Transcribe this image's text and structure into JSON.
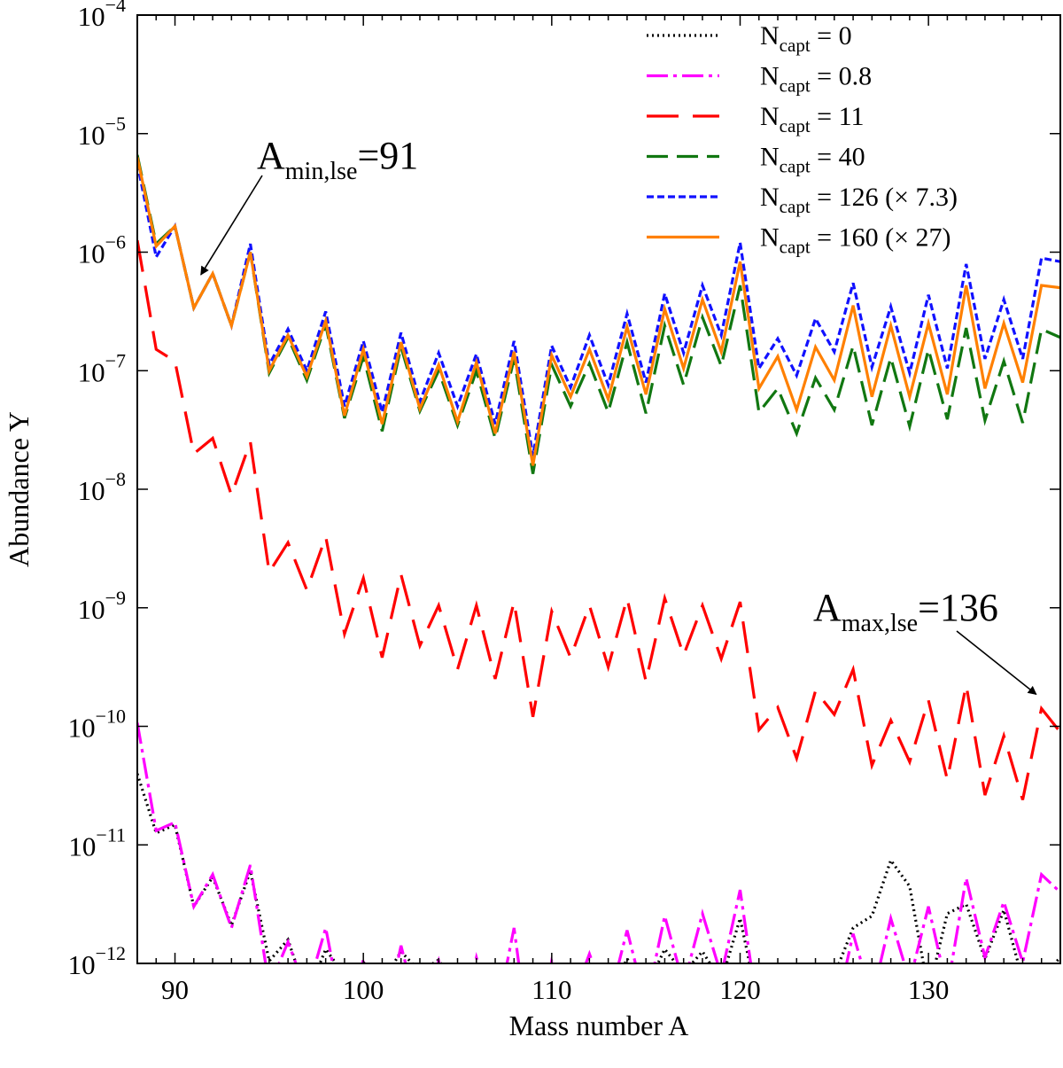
{
  "chart_data": {
    "type": "line",
    "xlabel": "Mass number A",
    "ylabel": "Abundance Y",
    "xlim": [
      88,
      137
    ],
    "ylim_log10": [
      -12,
      -4
    ],
    "yscale": "log",
    "x_ticks": [
      90,
      100,
      110,
      120,
      130
    ],
    "y_ticks": [
      {
        "base": "10",
        "exp": "−12",
        "log": -12
      },
      {
        "base": "10",
        "exp": "−11",
        "log": -11
      },
      {
        "base": "10",
        "exp": "−10",
        "log": -10
      },
      {
        "base": "10",
        "exp": "−9",
        "log": -9
      },
      {
        "base": "10",
        "exp": "−8",
        "log": -8
      },
      {
        "base": "10",
        "exp": "−7",
        "log": -7
      },
      {
        "base": "10",
        "exp": "−6",
        "log": -6
      },
      {
        "base": "10",
        "exp": "−5",
        "log": -5
      },
      {
        "base": "10",
        "exp": "−4",
        "log": -4
      }
    ],
    "x": [
      88,
      89,
      90,
      91,
      92,
      93,
      94,
      95,
      96,
      97,
      98,
      99,
      100,
      101,
      102,
      103,
      104,
      105,
      106,
      107,
      108,
      109,
      110,
      111,
      112,
      113,
      114,
      115,
      116,
      117,
      118,
      119,
      120,
      121,
      122,
      123,
      124,
      125,
      126,
      127,
      128,
      129,
      130,
      131,
      132,
      133,
      134,
      135,
      136,
      137
    ],
    "legend_position": "top-right",
    "series": [
      {
        "name": "N_capt = 0",
        "label_main": "N",
        "label_sub": "capt",
        "label_rest": " = 0",
        "color": "#000000",
        "dash": "2,4",
        "log10_values": [
          -10.4,
          -10.9,
          -10.83,
          -11.52,
          -11.27,
          -11.68,
          -11.22,
          -11.98,
          -11.8,
          -12.27,
          -11.88,
          -12.1,
          -11.99,
          -12.16,
          -11.9,
          -12.07,
          -11.97,
          -12.24,
          -12.15,
          -12.4,
          -12.11,
          -12.51,
          -12.1,
          -12.31,
          -12.09,
          -12.3,
          -11.96,
          -12.21,
          -11.88,
          -12.08,
          -11.9,
          -12.15,
          -11.62,
          -12.37,
          -12.2,
          -12.37,
          -12.02,
          -12.1,
          -11.7,
          -11.6,
          -11.13,
          -11.35,
          -12.24,
          -11.58,
          -11.5,
          -11.96,
          -11.55,
          -12.14,
          -12.12,
          -11.95
        ]
      },
      {
        "name": "N_capt = 0.8",
        "label_main": "N",
        "label_sub": "capt",
        "label_rest": " = 0.8",
        "color": "#ff00ff",
        "dash": "24,6,4,6",
        "log10_values": [
          -9.97,
          -10.88,
          -10.81,
          -11.52,
          -11.25,
          -11.7,
          -11.17,
          -12.2,
          -11.82,
          -12.25,
          -11.7,
          -12.52,
          -11.97,
          -12.6,
          -11.85,
          -12.48,
          -11.98,
          -12.62,
          -11.95,
          -12.5,
          -11.7,
          -12.9,
          -11.98,
          -12.35,
          -11.92,
          -12.35,
          -11.72,
          -12.35,
          -11.6,
          -12.18,
          -11.58,
          -12.1,
          -11.38,
          -12.48,
          -12.2,
          -12.68,
          -12.02,
          -12.47,
          -11.75,
          -12.3,
          -11.62,
          -12.15,
          -11.52,
          -12.22,
          -11.28,
          -11.95,
          -11.48,
          -11.99,
          -11.25,
          -11.4
        ]
      },
      {
        "name": "N_capt = 11",
        "label_main": "N",
        "label_sub": "capt",
        "label_rest": " = 11",
        "color": "#ff0000",
        "dash": "36,16",
        "log10_values": [
          -5.9,
          -6.82,
          -6.92,
          -7.7,
          -7.57,
          -8.05,
          -7.6,
          -8.7,
          -8.45,
          -8.85,
          -8.4,
          -9.22,
          -8.75,
          -9.42,
          -8.72,
          -9.32,
          -8.98,
          -9.52,
          -8.98,
          -9.6,
          -8.95,
          -9.92,
          -9.03,
          -9.42,
          -8.98,
          -9.5,
          -8.92,
          -9.62,
          -8.92,
          -9.4,
          -8.98,
          -9.43,
          -8.95,
          -10.03,
          -9.84,
          -10.27,
          -9.7,
          -9.9,
          -9.52,
          -10.33,
          -9.95,
          -10.3,
          -9.78,
          -10.45,
          -9.65,
          -10.58,
          -10.08,
          -10.62,
          -9.85,
          -10.05
        ]
      },
      {
        "name": "N_capt = 40",
        "label_main": "N",
        "label_sub": "capt",
        "label_rest": " = 40",
        "color": "#117711",
        "dash": "24,10",
        "log10_values": [
          -5.18,
          -5.93,
          -5.78,
          -6.47,
          -6.18,
          -6.62,
          -6.0,
          -7.02,
          -6.72,
          -7.08,
          -6.61,
          -7.4,
          -6.88,
          -7.51,
          -6.8,
          -7.34,
          -7.0,
          -7.46,
          -7.0,
          -7.57,
          -6.9,
          -7.87,
          -6.95,
          -7.3,
          -6.94,
          -7.35,
          -6.76,
          -7.36,
          -6.62,
          -7.12,
          -6.55,
          -6.96,
          -6.28,
          -7.35,
          -7.15,
          -7.53,
          -7.06,
          -7.33,
          -6.79,
          -7.46,
          -6.89,
          -7.47,
          -6.82,
          -7.41,
          -6.64,
          -7.42,
          -6.92,
          -7.44,
          -6.65,
          -6.72
        ]
      },
      {
        "name": "N_capt = 126 (× 7.3)",
        "label_main": "N",
        "label_sub": "capt",
        "label_rest": " = 126 (× 7.3)",
        "color": "#1111ff",
        "dash": "8,4",
        "log10_values": [
          -5.25,
          -6.04,
          -5.78,
          -6.47,
          -6.18,
          -6.62,
          -5.93,
          -6.95,
          -6.65,
          -7.0,
          -6.5,
          -7.3,
          -6.75,
          -7.35,
          -6.68,
          -7.26,
          -6.85,
          -7.3,
          -6.86,
          -7.45,
          -6.75,
          -7.72,
          -6.79,
          -7.14,
          -6.7,
          -7.12,
          -6.52,
          -7.1,
          -6.35,
          -6.85,
          -6.28,
          -6.7,
          -5.92,
          -6.98,
          -6.73,
          -7.04,
          -6.56,
          -6.84,
          -6.26,
          -6.97,
          -6.46,
          -7.02,
          -6.36,
          -6.98,
          -6.1,
          -6.9,
          -6.4,
          -6.9,
          -6.05,
          -6.08
        ]
      },
      {
        "name": "N_capt = 160 (× 27)",
        "label_main": "N",
        "label_sub": "capt",
        "label_rest": " = 160 (× 27)",
        "color": "#ff8000",
        "dash": "",
        "log10_values": [
          -5.2,
          -5.95,
          -5.78,
          -6.47,
          -6.18,
          -6.62,
          -6.0,
          -7.0,
          -6.7,
          -7.05,
          -6.58,
          -7.38,
          -6.82,
          -7.45,
          -6.76,
          -7.32,
          -6.95,
          -7.43,
          -6.93,
          -7.53,
          -6.84,
          -7.8,
          -6.87,
          -7.22,
          -6.82,
          -7.24,
          -6.63,
          -7.2,
          -6.48,
          -6.98,
          -6.4,
          -6.84,
          -6.08,
          -7.15,
          -6.88,
          -7.33,
          -6.8,
          -7.08,
          -6.45,
          -7.22,
          -6.62,
          -7.22,
          -6.6,
          -7.2,
          -6.28,
          -7.15,
          -6.6,
          -7.1,
          -6.28,
          -6.3
        ]
      }
    ],
    "annotations": [
      {
        "name": "amin",
        "main": "A",
        "sub": "min,lse",
        "rest": "=91",
        "points_to_x": 91
      },
      {
        "name": "amax",
        "main": "A",
        "sub": "max,lse",
        "rest": "=136",
        "points_to_x": 136
      }
    ]
  }
}
